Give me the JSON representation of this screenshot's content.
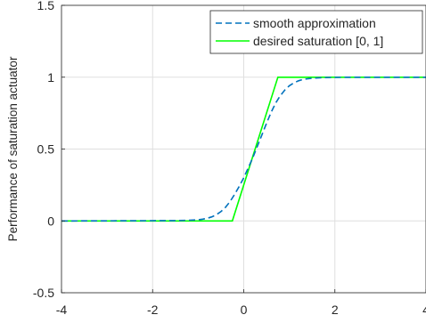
{
  "chart_data": {
    "type": "line",
    "title": "",
    "xlabel": "",
    "ylabel": "Performance of saturation actuator",
    "xlim": [
      -4,
      4
    ],
    "ylim": [
      -0.5,
      1.5
    ],
    "xticks": [
      -4,
      -2,
      0,
      2,
      4
    ],
    "xtick_labels": [
      "-4",
      "-2",
      "0",
      "2",
      "4"
    ],
    "yticks": [
      -0.5,
      0,
      0.5,
      1,
      1.5
    ],
    "ytick_labels": [
      "-0.5",
      "0",
      "0.5",
      "1",
      "1.5"
    ],
    "grid": true,
    "legend_position": "top-right",
    "series": [
      {
        "name": "smooth approximation",
        "color": "#0072BD",
        "style": "dashed",
        "x": [
          -4,
          -1.5,
          -1.25,
          -1,
          -0.9,
          -0.8,
          -0.7,
          -0.6,
          -0.5,
          -0.4,
          -0.3,
          -0.2,
          -0.1,
          0,
          0.1,
          0.2,
          0.3,
          0.4,
          0.5,
          0.6,
          0.7,
          0.8,
          0.9,
          1.0,
          1.1,
          1.2,
          1.3,
          1.5,
          1.75,
          2,
          2.5,
          4
        ],
        "y": [
          0,
          0.002,
          0.004,
          0.008,
          0.012,
          0.018,
          0.028,
          0.043,
          0.065,
          0.095,
          0.135,
          0.185,
          0.24,
          0.3,
          0.37,
          0.44,
          0.52,
          0.6,
          0.68,
          0.755,
          0.82,
          0.87,
          0.91,
          0.94,
          0.96,
          0.975,
          0.985,
          0.993,
          0.997,
          0.999,
          1.0,
          1.0
        ]
      },
      {
        "name": "desired saturation [0, 1]",
        "color": "#00FF00",
        "style": "solid",
        "x": [
          -4,
          -0.25,
          0.75,
          4
        ],
        "y": [
          0,
          0,
          1,
          1
        ]
      }
    ]
  }
}
